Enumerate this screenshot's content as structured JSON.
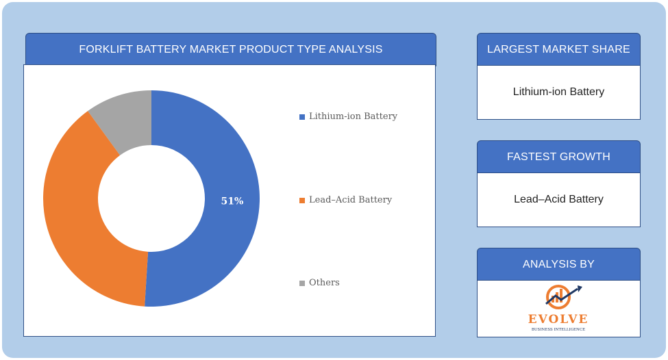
{
  "chart_panel": {
    "title": "FORKLIFT BATTERY MARKET PRODUCT TYPE ANALYSIS"
  },
  "chart_data": {
    "type": "pie",
    "donut": true,
    "categories": [
      "Lithium-ion Battery",
      "Lead–Acid Battery",
      "Others"
    ],
    "values": [
      51,
      39,
      10
    ],
    "colors": [
      "#4472c4",
      "#ed7d31",
      "#a5a5a5"
    ],
    "data_labels": [
      "51%",
      "",
      ""
    ],
    "legend_position": "right"
  },
  "largest_share": {
    "title": "LARGEST MARKET SHARE",
    "value": "Lithium-ion Battery"
  },
  "fastest_growth": {
    "title": "FASTEST GROWTH",
    "value": "Lead–Acid Battery"
  },
  "analysis_by": {
    "title": "ANALYSIS BY",
    "logo_name": "EVOLVE",
    "logo_tagline": "BUSINESS INTELLIGENCE",
    "logo_colors": [
      "#ed7d31",
      "#1f3864",
      "#8c8c8c"
    ]
  }
}
